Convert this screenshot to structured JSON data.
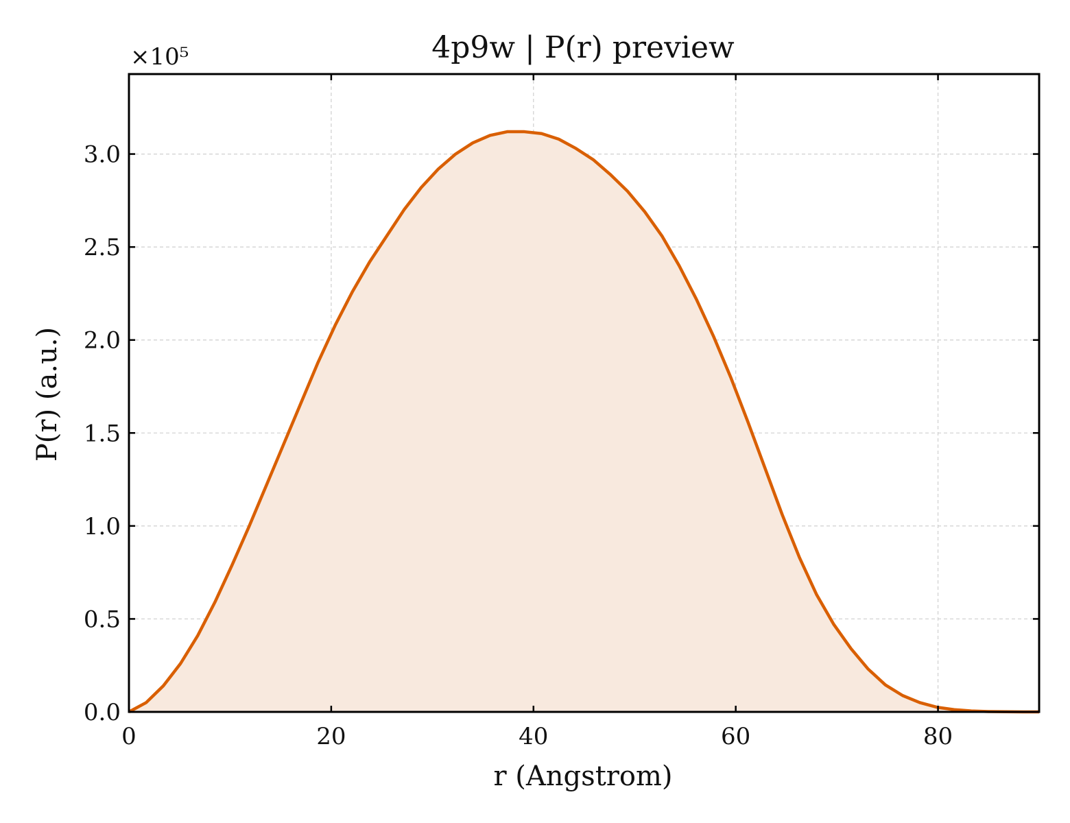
{
  "chart_data": {
    "type": "area",
    "title": "4p9w | P(r) preview",
    "xlabel": "r (Angstrom)",
    "ylabel": "P(r) (a.u.)",
    "y_multiplier": "×10⁵",
    "xlim": [
      0,
      90
    ],
    "ylim": [
      0,
      3.43
    ],
    "xticks": [
      0,
      20,
      40,
      60,
      80
    ],
    "xtick_labels": [
      "0",
      "20",
      "40",
      "60",
      "80"
    ],
    "yticks": [
      0.0,
      0.5,
      1.0,
      1.5,
      2.0,
      2.5,
      3.0
    ],
    "ytick_labels": [
      "0.0",
      "0.5",
      "1.0",
      "1.5",
      "2.0",
      "2.5",
      "3.0"
    ],
    "grid": true,
    "line_color": "#d95f02",
    "fill_color": "#f8e9de",
    "x": [
      0,
      1.7,
      3.4,
      5.1,
      6.8,
      8.5,
      10.2,
      11.9,
      13.6,
      15.3,
      17.0,
      18.7,
      20.4,
      22.1,
      23.8,
      25.5,
      27.2,
      28.9,
      30.6,
      32.3,
      34.0,
      35.7,
      37.4,
      39.1,
      40.8,
      42.5,
      44.2,
      45.9,
      47.6,
      49.3,
      51.0,
      52.7,
      54.4,
      56.1,
      57.8,
      59.5,
      61.2,
      62.9,
      64.6,
      66.3,
      68.0,
      69.7,
      71.4,
      73.1,
      74.8,
      76.5,
      78.2,
      79.9,
      81.6,
      83.3,
      85.0,
      86.7,
      88.4,
      90.0
    ],
    "y": [
      0.0,
      0.05,
      0.14,
      0.26,
      0.41,
      0.59,
      0.79,
      1.0,
      1.22,
      1.44,
      1.66,
      1.88,
      2.08,
      2.26,
      2.42,
      2.56,
      2.7,
      2.82,
      2.92,
      3.0,
      3.06,
      3.1,
      3.12,
      3.12,
      3.11,
      3.08,
      3.03,
      2.97,
      2.89,
      2.8,
      2.69,
      2.56,
      2.4,
      2.22,
      2.02,
      1.8,
      1.56,
      1.31,
      1.06,
      0.83,
      0.63,
      0.47,
      0.34,
      0.23,
      0.145,
      0.088,
      0.05,
      0.025,
      0.012,
      0.005,
      0.002,
      0.001,
      0.0,
      0.0
    ]
  }
}
